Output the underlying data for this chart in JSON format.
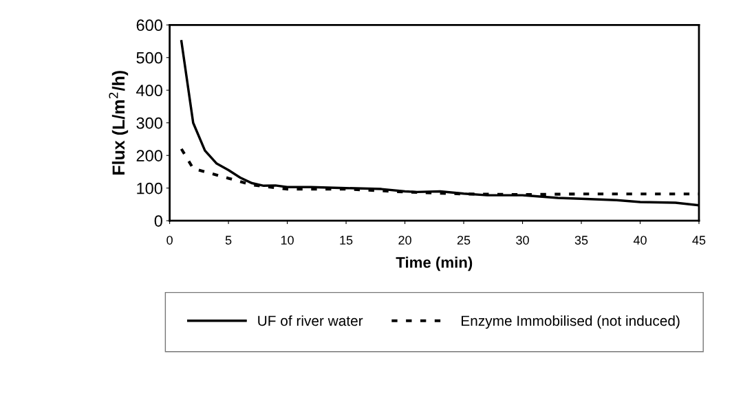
{
  "chart_data": {
    "type": "line",
    "xlabel": "Time (min)",
    "ylabel": "Flux (L/m$^{2}$/h)",
    "xlim": [
      0,
      45
    ],
    "xticks": [
      0,
      5,
      10,
      15,
      20,
      25,
      30,
      35,
      40,
      45
    ],
    "ylim": [
      0,
      600
    ],
    "yticks": [
      0,
      100,
      200,
      300,
      400,
      500,
      600
    ],
    "grid": false,
    "legend": "bottom",
    "marker": "none",
    "series": [
      {
        "name": "UF of river water",
        "color": "#000000",
        "line_style": "solid",
        "x": [
          1,
          2,
          3,
          4,
          5,
          6,
          7,
          8,
          9,
          10,
          12,
          15,
          18,
          20,
          21,
          23,
          25,
          27,
          30,
          33,
          35,
          38,
          40,
          43,
          45
        ],
        "values": [
          550,
          300,
          215,
          175,
          155,
          132,
          115,
          107,
          108,
          103,
          103,
          100,
          97,
          90,
          88,
          90,
          83,
          78,
          78,
          70,
          67,
          63,
          57,
          55,
          47
        ]
      },
      {
        "name": "Enzyme Immobilised (not induced)",
        "color": "#000000",
        "line_style": "dotted",
        "x": [
          1,
          2,
          3,
          4,
          5,
          6,
          7,
          8,
          10,
          15,
          20,
          25,
          30,
          35,
          40,
          45
        ],
        "values": [
          220,
          160,
          150,
          140,
          130,
          120,
          110,
          105,
          97,
          97,
          88,
          82,
          80,
          82,
          82,
          82
        ]
      }
    ]
  }
}
